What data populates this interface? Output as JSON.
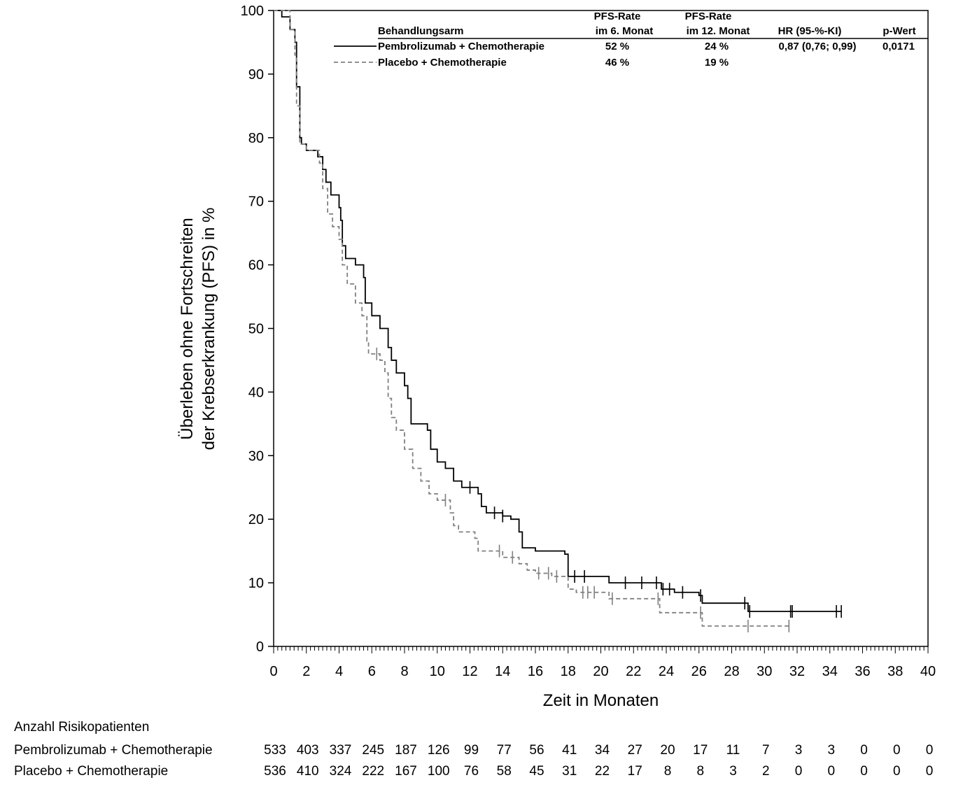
{
  "chart_data": {
    "type": "line",
    "subtype": "kaplan-meier",
    "xlabel": "Zeit in Monaten",
    "ylabel_lines": [
      "Überleben ohne Fortschreiten",
      "der Krebserkrankung (PFS) in %"
    ],
    "xlim": [
      0,
      40
    ],
    "ylim": [
      0,
      100
    ],
    "xticks": [
      0,
      2,
      4,
      6,
      8,
      10,
      12,
      14,
      16,
      18,
      20,
      22,
      24,
      26,
      28,
      30,
      32,
      34,
      36,
      38,
      40
    ],
    "yticks": [
      0,
      10,
      20,
      30,
      40,
      50,
      60,
      70,
      80,
      90,
      100
    ],
    "legend": {
      "headers": {
        "arm": "Behandlungsarm",
        "pfs6_line1": "PFS-Rate",
        "pfs6_line2": "im 6. Monat",
        "pfs12_line1": "PFS-Rate",
        "pfs12_line2": "im 12. Monat",
        "hr": "HR (95-%-KI)",
        "p": "p-Wert"
      },
      "rows": [
        {
          "name": "Pembrolizumab + Chemotherapie",
          "pfs6": "52 %",
          "pfs12": "24 %",
          "hr": "0,87 (0,76; 0,99)",
          "p": "0,0171"
        },
        {
          "name": "Placebo + Chemotherapie",
          "pfs6": "46 %",
          "pfs12": "19 %",
          "hr": "",
          "p": ""
        }
      ]
    },
    "series": [
      {
        "name": "Pembrolizumab + Chemotherapie",
        "style": "solid",
        "color": "#000000",
        "points": [
          [
            0,
            100
          ],
          [
            0.5,
            99
          ],
          [
            1,
            97
          ],
          [
            1.3,
            95
          ],
          [
            1.4,
            88
          ],
          [
            1.6,
            80
          ],
          [
            1.7,
            79
          ],
          [
            2,
            78
          ],
          [
            2.7,
            77
          ],
          [
            3,
            75
          ],
          [
            3.2,
            73
          ],
          [
            3.5,
            71
          ],
          [
            4,
            69
          ],
          [
            4.1,
            67
          ],
          [
            4.2,
            63
          ],
          [
            4.4,
            61
          ],
          [
            5,
            60
          ],
          [
            5.5,
            58
          ],
          [
            5.6,
            54
          ],
          [
            6,
            52
          ],
          [
            6.5,
            50
          ],
          [
            7,
            47
          ],
          [
            7.2,
            45
          ],
          [
            7.5,
            43
          ],
          [
            8,
            41
          ],
          [
            8.2,
            39
          ],
          [
            8.4,
            35
          ],
          [
            9,
            35
          ],
          [
            9.4,
            34
          ],
          [
            9.6,
            31
          ],
          [
            10,
            29
          ],
          [
            10.5,
            28
          ],
          [
            11,
            26
          ],
          [
            11.5,
            25
          ],
          [
            12.5,
            24
          ],
          [
            12.7,
            22
          ],
          [
            13,
            21
          ],
          [
            14,
            20.5
          ],
          [
            14.5,
            20
          ],
          [
            15,
            18
          ],
          [
            15.2,
            15.5
          ],
          [
            16,
            15
          ],
          [
            17,
            15
          ],
          [
            17.8,
            14.5
          ],
          [
            18,
            11
          ],
          [
            20,
            11
          ],
          [
            20.5,
            10
          ],
          [
            22,
            10
          ],
          [
            23.7,
            9
          ],
          [
            24.5,
            8.5
          ],
          [
            26,
            8
          ],
          [
            26.2,
            6.8
          ],
          [
            28,
            6.8
          ],
          [
            29,
            5.5
          ],
          [
            34.7,
            5.5
          ]
        ],
        "censored": [
          12,
          13.5,
          14,
          18.4,
          19,
          21.5,
          22.5,
          23.4,
          23.8,
          24.2,
          25,
          26.1,
          28.8,
          29.1,
          31.6,
          31.7,
          34.4,
          34.7
        ]
      },
      {
        "name": "Placebo + Chemotherapie",
        "style": "dashed",
        "color": "#808080",
        "points": [
          [
            0,
            100
          ],
          [
            1,
            97
          ],
          [
            1.3,
            93
          ],
          [
            1.4,
            85
          ],
          [
            1.6,
            79
          ],
          [
            2,
            78
          ],
          [
            2.8,
            76
          ],
          [
            3,
            72
          ],
          [
            3.3,
            68
          ],
          [
            3.6,
            66
          ],
          [
            4,
            64
          ],
          [
            4.2,
            60
          ],
          [
            4.5,
            57
          ],
          [
            5,
            54
          ],
          [
            5.4,
            52
          ],
          [
            5.7,
            48
          ],
          [
            5.8,
            46
          ],
          [
            6.5,
            45
          ],
          [
            6.8,
            43
          ],
          [
            7,
            39
          ],
          [
            7.2,
            36
          ],
          [
            7.5,
            34
          ],
          [
            8,
            31
          ],
          [
            8.5,
            28
          ],
          [
            9,
            26
          ],
          [
            9.5,
            24
          ],
          [
            10,
            23
          ],
          [
            10.8,
            21
          ],
          [
            11,
            19
          ],
          [
            11.3,
            18
          ],
          [
            12,
            18
          ],
          [
            12.3,
            17
          ],
          [
            12.5,
            15
          ],
          [
            13,
            15
          ],
          [
            14,
            14
          ],
          [
            15,
            13
          ],
          [
            15.5,
            12
          ],
          [
            16,
            11.5
          ],
          [
            17,
            11
          ],
          [
            18,
            9
          ],
          [
            18.5,
            8.5
          ],
          [
            20,
            8.5
          ],
          [
            20.5,
            7.5
          ],
          [
            23.5,
            7.5
          ],
          [
            23.6,
            5.3
          ],
          [
            26,
            5.3
          ],
          [
            26.2,
            3.2
          ],
          [
            31.6,
            3.2
          ]
        ],
        "censored": [
          6.3,
          10.5,
          13.8,
          14.6,
          16.2,
          16.8,
          17.3,
          18.9,
          19.2,
          19.6,
          20.7,
          23.5,
          26.1,
          29,
          31.5
        ]
      }
    ],
    "risk_table": {
      "title": "Anzahl Risikopatienten",
      "rows": [
        {
          "label": "Pembrolizumab + Chemotherapie",
          "values": [
            533,
            403,
            337,
            245,
            187,
            126,
            99,
            77,
            56,
            41,
            34,
            27,
            20,
            17,
            11,
            7,
            3,
            3,
            0,
            0,
            0
          ]
        },
        {
          "label": "Placebo + Chemotherapie",
          "values": [
            536,
            410,
            324,
            222,
            167,
            100,
            76,
            58,
            45,
            31,
            22,
            17,
            8,
            8,
            3,
            2,
            0,
            0,
            0,
            0,
            0
          ]
        }
      ]
    }
  }
}
